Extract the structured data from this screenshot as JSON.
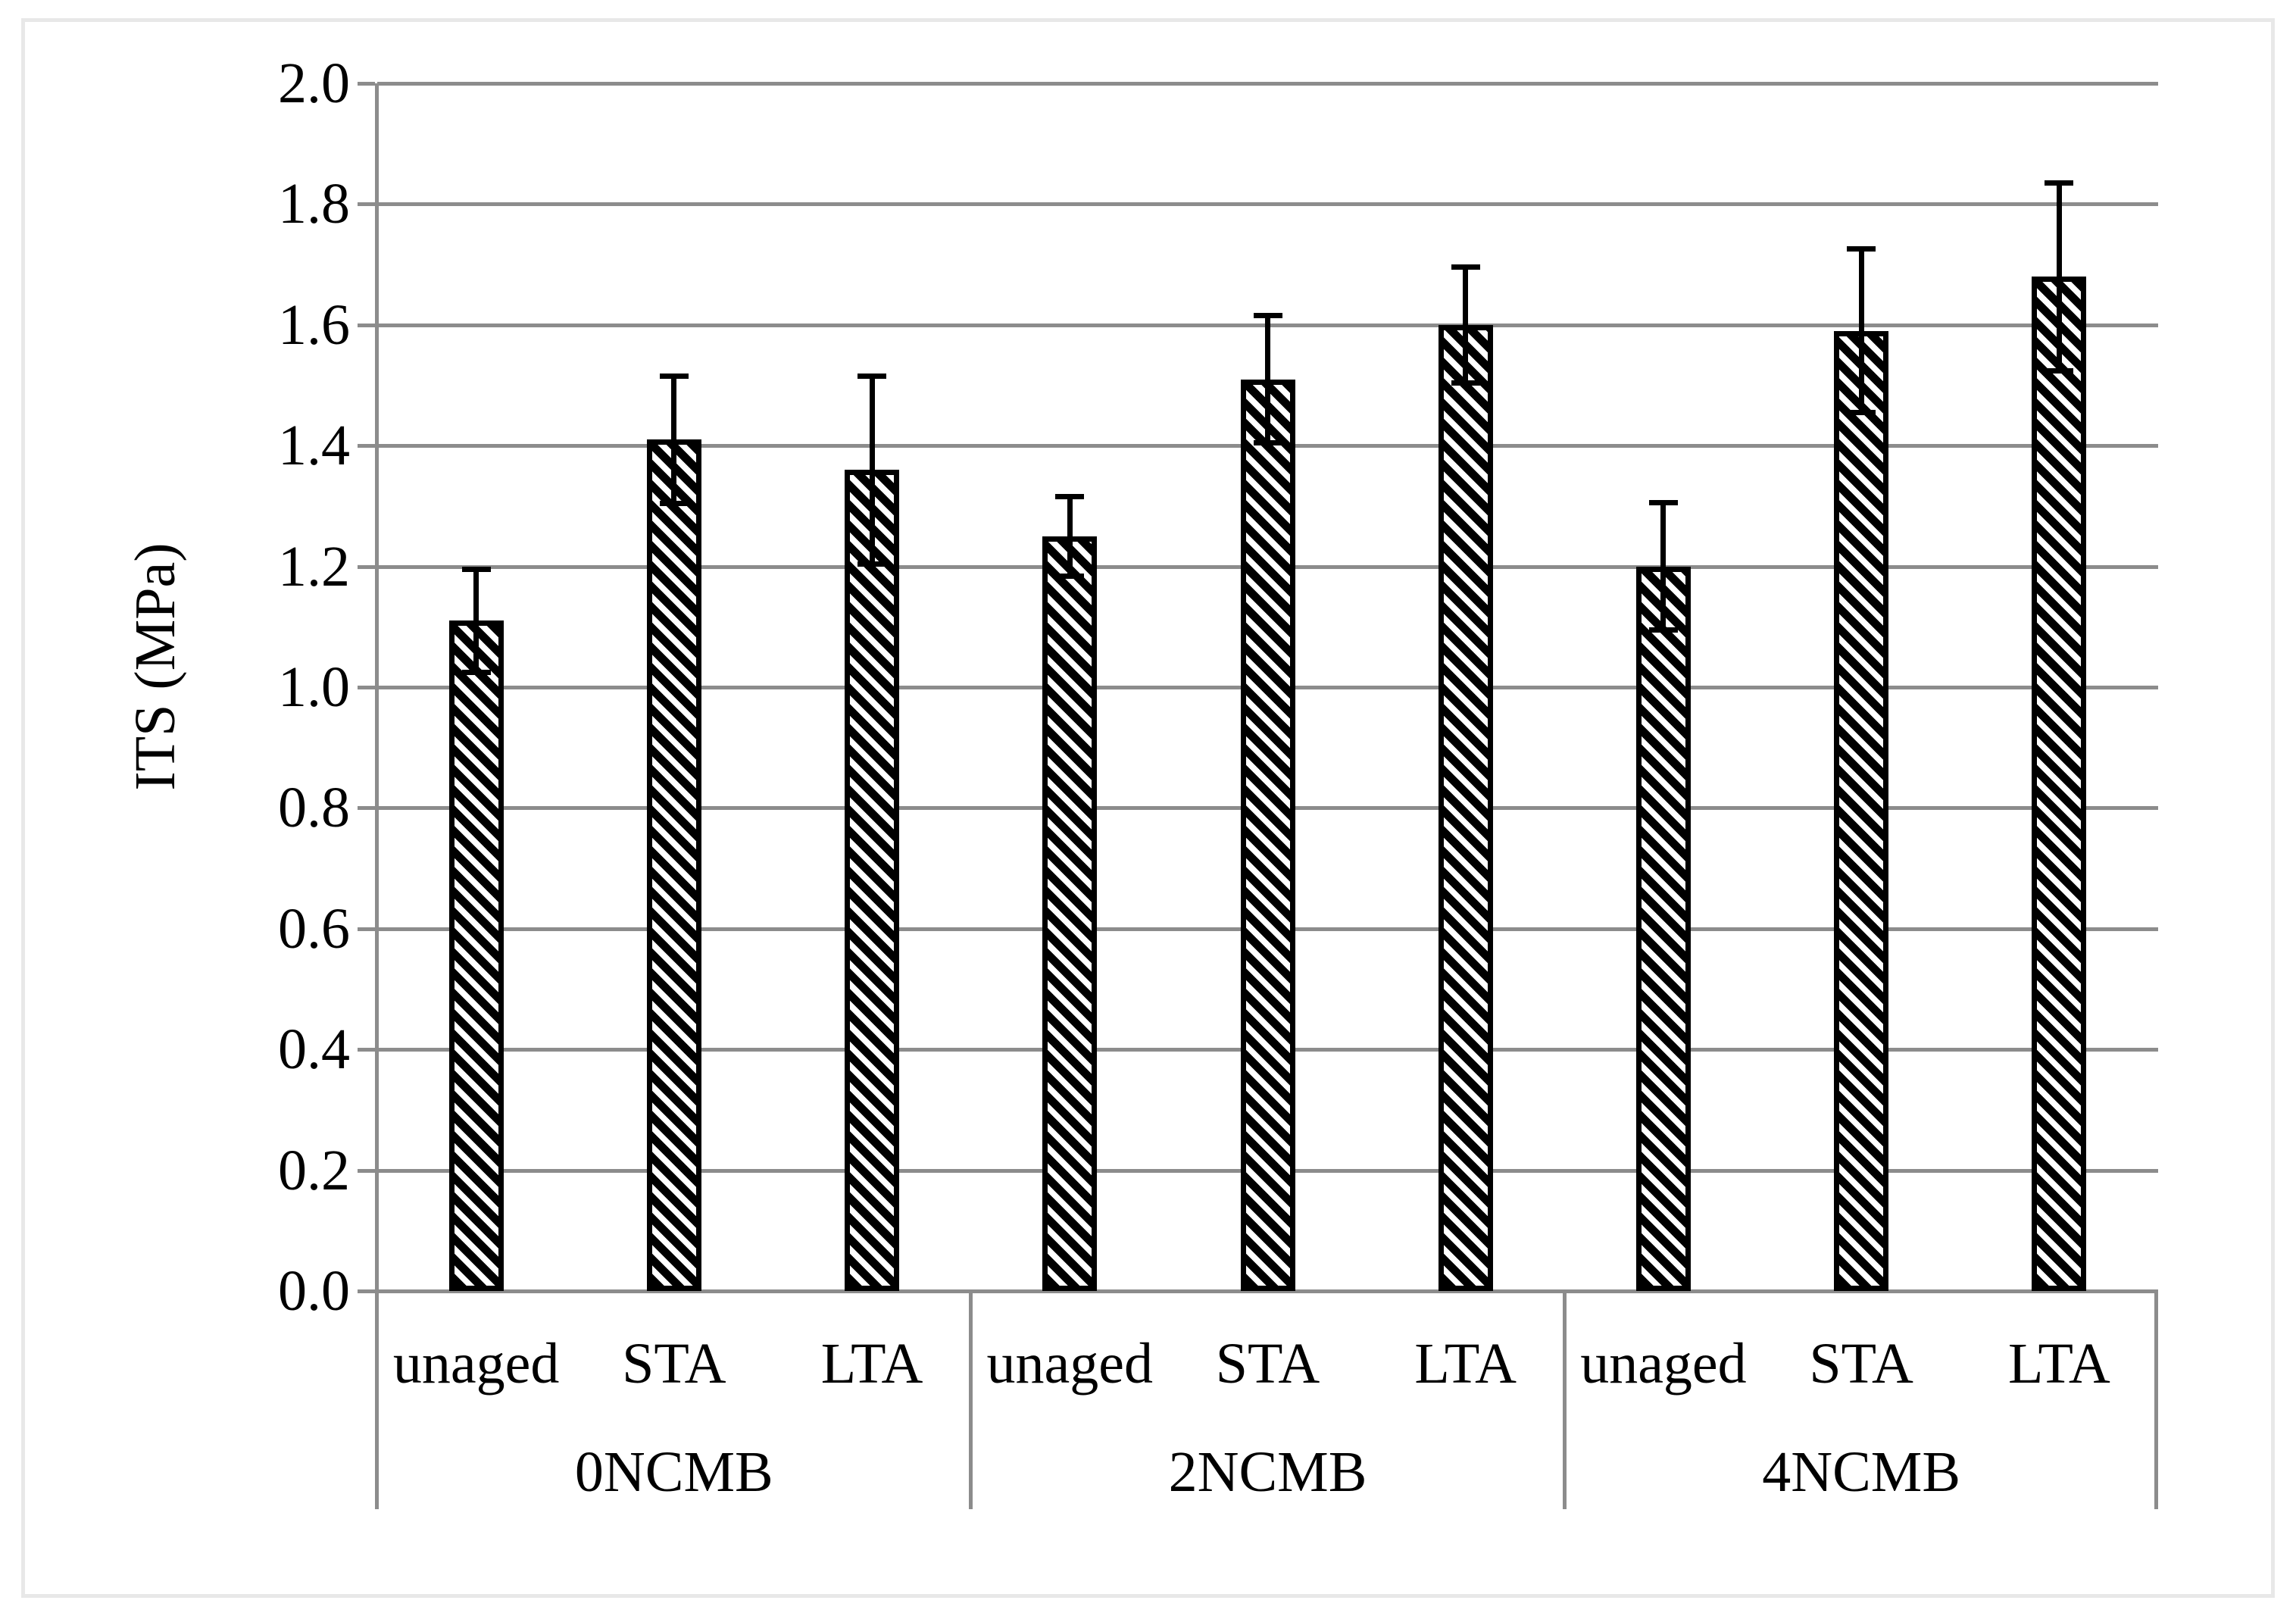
{
  "figure": {
    "background": "#ffffff",
    "frame_color": "#e8e8e8"
  },
  "chart_data": {
    "type": "bar",
    "title": "",
    "xlabel": "",
    "ylabel": "ITS (MPa)",
    "ylim": [
      0.0,
      2.0
    ],
    "ytick_step": 0.2,
    "yticks": [
      "2.0",
      "1.8",
      "1.6",
      "1.4",
      "1.2",
      "1.0",
      "0.8",
      "0.6",
      "0.4",
      "0.2",
      "0.0"
    ],
    "grid": true,
    "legend": false,
    "bar_style": "diagonal-hatch",
    "error_bars": "symmetric",
    "groups": [
      {
        "label": "0NCMB",
        "bars": [
          {
            "label": "unaged",
            "value": 1.11,
            "error": 0.09
          },
          {
            "label": "STA",
            "value": 1.41,
            "error": 0.11
          },
          {
            "label": "LTA",
            "value": 1.36,
            "error": 0.16
          }
        ]
      },
      {
        "label": "2NCMB",
        "bars": [
          {
            "label": "unaged",
            "value": 1.25,
            "error": 0.07
          },
          {
            "label": "STA",
            "value": 1.51,
            "error": 0.11
          },
          {
            "label": "LTA",
            "value": 1.6,
            "error": 0.1
          }
        ]
      },
      {
        "label": "4NCMB",
        "bars": [
          {
            "label": "unaged",
            "value": 1.2,
            "error": 0.11
          },
          {
            "label": "STA",
            "value": 1.59,
            "error": 0.14
          },
          {
            "label": "LTA",
            "value": 1.68,
            "error": 0.16
          }
        ]
      }
    ],
    "colors": {
      "bar_stroke": "#000000",
      "hatch": "#000000",
      "bar_fill": "#ffffff",
      "grid": "#8c8c8c",
      "axis": "#8c8c8c",
      "text": "#000000",
      "error_bar": "#000000"
    }
  }
}
